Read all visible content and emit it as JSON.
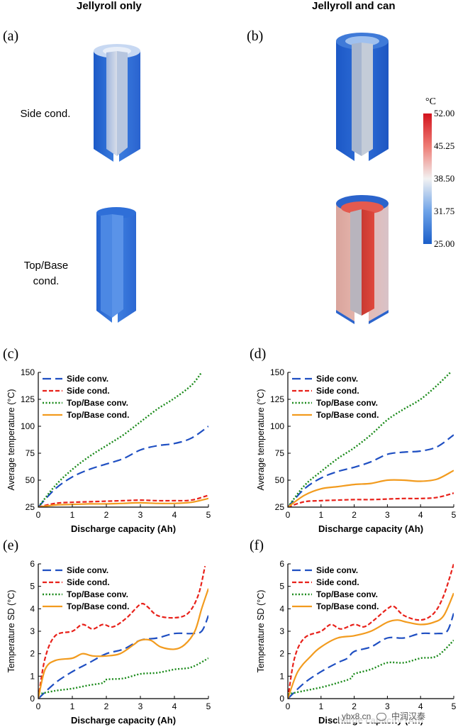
{
  "column_titles": [
    "Jellyroll only",
    "Jellyroll and can"
  ],
  "row_labels": [
    "Side cond.",
    "Top/Base\ncond."
  ],
  "panel_labels": [
    "(a)",
    "(b)",
    "(c)",
    "(d)",
    "(e)",
    "(f)"
  ],
  "colorbar": {
    "unit": "°C",
    "ticks": [
      "52.00",
      "45.25",
      "38.50",
      "31.75",
      "25.00"
    ]
  },
  "watermark": {
    "site": "ybx8.cn",
    "brand": "中润汉泰"
  },
  "colors": {
    "side_conv": "#1f4fc2",
    "side_cond": "#e8211a",
    "topbase_conv": "#1a8a1a",
    "topbase_cond": "#f29b1e"
  },
  "chart_data": [
    {
      "type": "line",
      "panel": "(c)",
      "xlabel": "Discharge capacity (Ah)",
      "ylabel": "Average temperature (°C)",
      "xlim": [
        0,
        5
      ],
      "ylim": [
        25,
        150
      ],
      "xticks": [
        0,
        1,
        2,
        3,
        4,
        5
      ],
      "yticks": [
        25,
        50,
        75,
        100,
        125,
        150
      ],
      "legend": "top-left",
      "series": [
        {
          "name": "Side conv.",
          "x": [
            0,
            0.5,
            1,
            1.5,
            2,
            2.5,
            3,
            3.5,
            4,
            4.5,
            5
          ],
          "values": [
            25,
            42,
            53,
            60,
            65,
            70,
            78,
            82,
            84,
            89,
            100
          ]
        },
        {
          "name": "Side cond.",
          "x": [
            0,
            0.5,
            1,
            1.5,
            2,
            2.5,
            3,
            3.5,
            4,
            4.5,
            5
          ],
          "values": [
            25,
            28.5,
            29.5,
            30,
            30.5,
            31,
            31.5,
            31,
            31,
            31.5,
            36
          ]
        },
        {
          "name": "Top/Base conv.",
          "x": [
            0,
            0.5,
            1,
            1.5,
            2,
            2.5,
            3,
            3.5,
            4,
            4.5,
            4.8
          ],
          "values": [
            25,
            45,
            60,
            72,
            82,
            92,
            104,
            116,
            126,
            138,
            150
          ]
        },
        {
          "name": "Top/Base cond.",
          "x": [
            0,
            0.5,
            1,
            1.5,
            2,
            2.5,
            3,
            3.5,
            4,
            4.5,
            5
          ],
          "values": [
            25,
            27,
            27.5,
            28,
            28,
            28.5,
            29,
            28.5,
            28.5,
            29.5,
            33
          ]
        }
      ]
    },
    {
      "type": "line",
      "panel": "(d)",
      "xlabel": "Discharge capacity (Ah)",
      "ylabel": "Average temperature (°C)",
      "xlim": [
        0,
        5
      ],
      "ylim": [
        25,
        150
      ],
      "xticks": [
        0,
        1,
        2,
        3,
        4,
        5
      ],
      "yticks": [
        25,
        50,
        75,
        100,
        125,
        150
      ],
      "legend": "top-left",
      "series": [
        {
          "name": "Side conv.",
          "x": [
            0,
            0.5,
            1,
            1.5,
            2,
            2.5,
            3,
            3.5,
            4,
            4.5,
            5
          ],
          "values": [
            25,
            42,
            52,
            58,
            62,
            67,
            74,
            76,
            77,
            81,
            92
          ]
        },
        {
          "name": "Side cond.",
          "x": [
            0,
            0.5,
            1,
            1.5,
            2,
            2.5,
            3,
            3.5,
            4,
            4.5,
            5
          ],
          "values": [
            25,
            30,
            31,
            31.5,
            32,
            32,
            32.5,
            33,
            33,
            34,
            38
          ]
        },
        {
          "name": "Top/Base conv.",
          "x": [
            0,
            0.5,
            1,
            1.5,
            2,
            2.5,
            3,
            3.5,
            4,
            4.5,
            4.9
          ],
          "values": [
            25,
            45,
            58,
            70,
            80,
            92,
            106,
            116,
            125,
            138,
            150
          ]
        },
        {
          "name": "Top/Base cond.",
          "x": [
            0,
            0.5,
            1,
            1.5,
            2,
            2.5,
            3,
            3.5,
            4,
            4.5,
            5
          ],
          "values": [
            25,
            36,
            42,
            44,
            46,
            47,
            50,
            50,
            49,
            51,
            59
          ]
        }
      ]
    },
    {
      "type": "line",
      "panel": "(e)",
      "xlabel": "Discharge capacity (Ah)",
      "ylabel": "Temperature SD (°C)",
      "xlim": [
        0,
        5
      ],
      "ylim": [
        0,
        6
      ],
      "xticks": [
        0,
        1,
        2,
        3,
        4,
        5
      ],
      "yticks": [
        0,
        1,
        2,
        3,
        4,
        5,
        6
      ],
      "legend": "top-left",
      "series": [
        {
          "name": "Side conv.",
          "x": [
            0,
            0.5,
            1,
            1.5,
            2,
            2.5,
            3,
            3.5,
            4,
            4.5,
            4.8,
            5
          ],
          "values": [
            0,
            0.7,
            1.2,
            1.6,
            2.0,
            2.2,
            2.6,
            2.7,
            2.9,
            2.9,
            3.0,
            3.7
          ]
        },
        {
          "name": "Side cond.",
          "x": [
            0,
            0.2,
            0.5,
            1,
            1.3,
            1.6,
            1.9,
            2.2,
            2.6,
            3,
            3.2,
            3.5,
            4,
            4.4,
            4.7,
            4.9
          ],
          "values": [
            0,
            1.8,
            2.8,
            3.0,
            3.3,
            3.1,
            3.3,
            3.2,
            3.6,
            4.2,
            4.1,
            3.7,
            3.6,
            3.8,
            4.6,
            5.9
          ]
        },
        {
          "name": "Top/Base conv.",
          "x": [
            0,
            0.5,
            1,
            1.5,
            1.9,
            2,
            2.5,
            3,
            3.5,
            4,
            4.5,
            5
          ],
          "values": [
            0.2,
            0.35,
            0.45,
            0.6,
            0.7,
            0.85,
            0.9,
            1.1,
            1.15,
            1.3,
            1.4,
            1.8
          ]
        },
        {
          "name": "Top/Base cond.",
          "x": [
            0,
            0.2,
            0.5,
            1,
            1.3,
            1.6,
            2,
            2.4,
            2.8,
            3,
            3.3,
            3.6,
            4,
            4.3,
            4.6,
            4.8,
            5
          ],
          "values": [
            0,
            1.3,
            1.7,
            1.8,
            2.0,
            1.9,
            1.9,
            2.0,
            2.4,
            2.6,
            2.6,
            2.3,
            2.2,
            2.4,
            3.0,
            4.0,
            4.9
          ]
        }
      ]
    },
    {
      "type": "line",
      "panel": "(f)",
      "xlabel": "Discharge capacity (Ah)",
      "ylabel": "Temperature SD (°C)",
      "xlim": [
        0,
        5
      ],
      "ylim": [
        0,
        6
      ],
      "xticks": [
        0,
        1,
        2,
        3,
        4,
        5
      ],
      "yticks": [
        0,
        1,
        2,
        3,
        4,
        5,
        6
      ],
      "legend": "top-left",
      "series": [
        {
          "name": "Side conv.",
          "x": [
            0,
            0.5,
            1,
            1.5,
            1.8,
            2,
            2.5,
            3,
            3.5,
            4,
            4.5,
            4.8,
            5
          ],
          "values": [
            0,
            0.7,
            1.2,
            1.6,
            1.8,
            2.1,
            2.3,
            2.7,
            2.7,
            2.9,
            2.9,
            3.0,
            3.8
          ]
        },
        {
          "name": "Side cond.",
          "x": [
            0,
            0.2,
            0.5,
            1,
            1.3,
            1.6,
            2,
            2.3,
            2.6,
            3,
            3.2,
            3.5,
            4,
            4.4,
            4.7,
            5
          ],
          "values": [
            0,
            1.8,
            2.7,
            3.0,
            3.3,
            3.1,
            3.3,
            3.2,
            3.5,
            4.0,
            4.1,
            3.7,
            3.5,
            3.8,
            4.6,
            6.0
          ]
        },
        {
          "name": "Top/Base conv.",
          "x": [
            0,
            0.5,
            1,
            1.5,
            1.9,
            2,
            2.5,
            3,
            3.5,
            4,
            4.5,
            5
          ],
          "values": [
            0.2,
            0.35,
            0.5,
            0.7,
            0.9,
            1.1,
            1.3,
            1.6,
            1.6,
            1.8,
            1.9,
            2.6
          ]
        },
        {
          "name": "Top/Base cond.",
          "x": [
            0,
            0.3,
            0.7,
            1,
            1.5,
            2,
            2.5,
            3,
            3.3,
            3.6,
            4,
            4.4,
            4.7,
            5
          ],
          "values": [
            0,
            1.2,
            1.9,
            2.3,
            2.7,
            2.8,
            3.0,
            3.4,
            3.5,
            3.4,
            3.3,
            3.4,
            3.7,
            4.7
          ]
        }
      ]
    }
  ]
}
